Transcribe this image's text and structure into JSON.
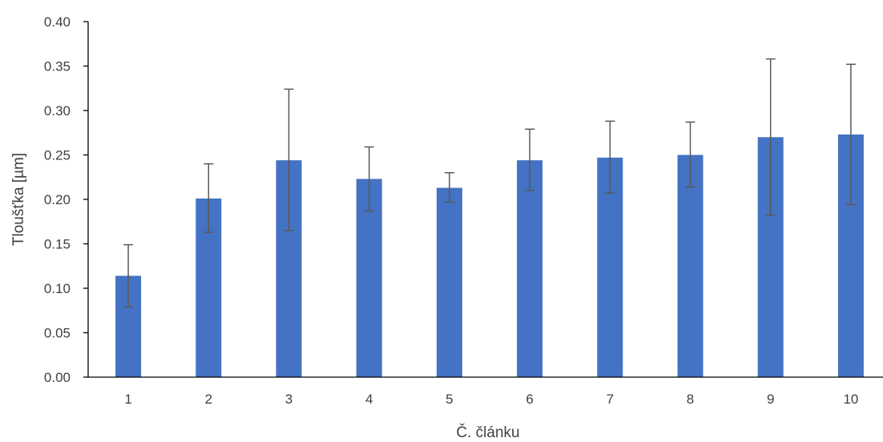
{
  "chart_data": {
    "type": "bar",
    "title": "",
    "xlabel": "Č. článku",
    "ylabel": "Tloušťka [µm]",
    "ylim": [
      0,
      0.4
    ],
    "yticks": [
      "0.00",
      "0.05",
      "0.10",
      "0.15",
      "0.20",
      "0.25",
      "0.30",
      "0.35",
      "0.40"
    ],
    "categories": [
      "1",
      "2",
      "3",
      "4",
      "5",
      "6",
      "7",
      "8",
      "9",
      "10"
    ],
    "values": [
      0.114,
      0.201,
      0.244,
      0.223,
      0.213,
      0.244,
      0.247,
      0.25,
      0.27,
      0.273
    ],
    "error_low": [
      0.079,
      0.163,
      0.165,
      0.187,
      0.197,
      0.21,
      0.207,
      0.214,
      0.182,
      0.194
    ],
    "error_high": [
      0.149,
      0.24,
      0.324,
      0.259,
      0.23,
      0.279,
      0.288,
      0.287,
      0.358,
      0.352
    ],
    "grid": false,
    "legend": "none",
    "colors": {
      "bar": "#4472C4",
      "error_bar": "#595959",
      "axis": "#000000",
      "text": "#404040"
    }
  }
}
